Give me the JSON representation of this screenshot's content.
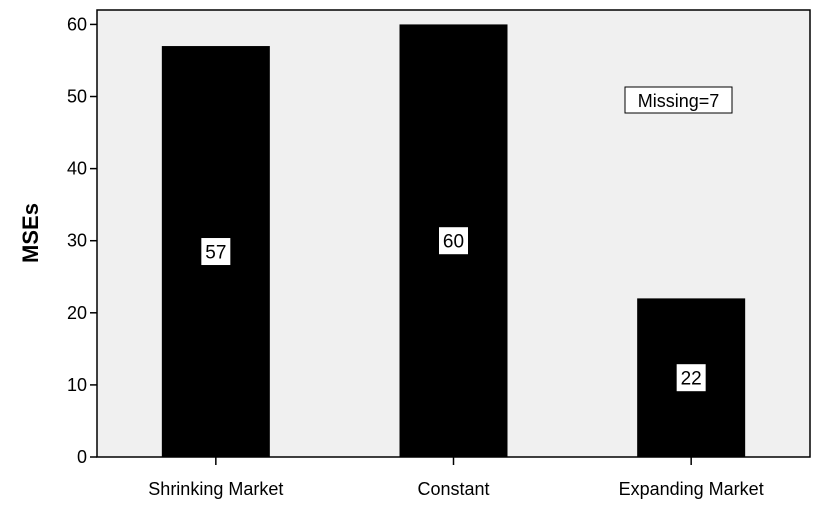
{
  "chart_data": {
    "type": "bar",
    "categories": [
      "Shrinking Market",
      "Constant",
      "Expanding Market"
    ],
    "values": [
      57,
      60,
      22
    ],
    "data_labels": [
      "57",
      "60",
      "22"
    ],
    "xlabel": "",
    "ylabel": "MSEs",
    "ylim": [
      0,
      62
    ],
    "yticks": [
      0,
      10,
      20,
      30,
      40,
      50,
      60
    ],
    "ytick_labels": [
      "0",
      "10",
      "20",
      "30",
      "40",
      "50",
      "60"
    ],
    "annotation": "Missing=7",
    "grid": false,
    "legend": "none"
  },
  "colors": {
    "plot_background": "#f0f0f0",
    "bar_fill": "#000000",
    "label_box": "#ffffff",
    "axis": "#000000"
  }
}
